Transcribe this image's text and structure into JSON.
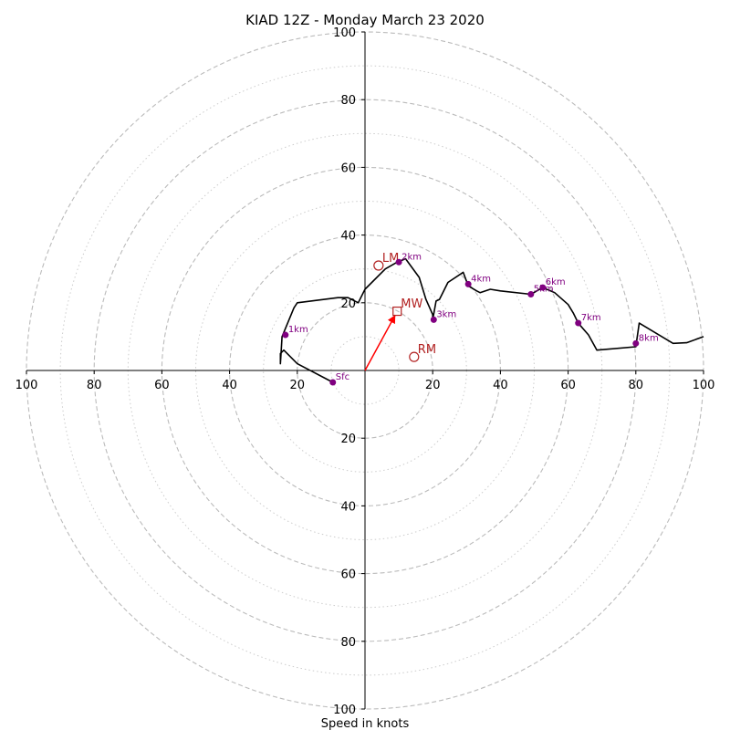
{
  "chart_data": {
    "type": "hodograph",
    "title": "KIAD 12Z - Monday March 23 2020",
    "xlabel": "Speed in knots",
    "range_max": 100,
    "rings_major": [
      20,
      40,
      60,
      80,
      100
    ],
    "rings_minor": [
      10,
      30,
      50,
      70,
      90
    ],
    "x_tick_labels": [
      "100",
      "80",
      "60",
      "40",
      "20",
      "20",
      "40",
      "60",
      "80",
      "100"
    ],
    "y_tick_labels": [
      "100",
      "80",
      "60",
      "40",
      "20",
      "20",
      "40",
      "60",
      "80",
      "100"
    ],
    "x_tick_values": [
      -100,
      -80,
      -60,
      -40,
      -20,
      20,
      40,
      60,
      80,
      100
    ],
    "y_tick_values": [
      100,
      80,
      60,
      40,
      20,
      -20,
      -40,
      -60,
      -80,
      -100
    ],
    "trace": {
      "u": [
        -9.5,
        -20,
        -24,
        -25,
        -25,
        -24.5,
        -21,
        -20,
        -8,
        -5,
        -2,
        0,
        6,
        9.5,
        12,
        16,
        18,
        20,
        20,
        21,
        22,
        24.5,
        29,
        30.5,
        33,
        34,
        37,
        40,
        49,
        52.5,
        56,
        60,
        61.5,
        63,
        66,
        68.5,
        80,
        81,
        91,
        95,
        100
      ],
      "v": [
        -3.5,
        2,
        6,
        5,
        2,
        10,
        18.5,
        20,
        21.5,
        21.5,
        20,
        24,
        30,
        32,
        33,
        27.5,
        21,
        16.5,
        15,
        20.5,
        21,
        26,
        29,
        25,
        23.5,
        23,
        24,
        23.5,
        22.5,
        24.5,
        23,
        19.5,
        17,
        14,
        10.5,
        6,
        7,
        14,
        8,
        8.2,
        10
      ],
      "color": "#000000"
    },
    "height_markers": [
      {
        "label": "Sfc",
        "u": -9.5,
        "v": -3.5
      },
      {
        "label": "1km",
        "u": -23.5,
        "v": 10.5
      },
      {
        "label": "2km",
        "u": 10,
        "v": 32
      },
      {
        "label": "3km",
        "u": 20.3,
        "v": 15
      },
      {
        "label": "4km",
        "u": 30.5,
        "v": 25.5
      },
      {
        "label": "5km",
        "u": 49,
        "v": 22.5
      },
      {
        "label": "6km",
        "u": 52.5,
        "v": 24.5
      },
      {
        "label": "7km",
        "u": 63,
        "v": 14
      },
      {
        "label": "8km",
        "u": 80,
        "v": 8
      }
    ],
    "marker_color": "#800080",
    "storm_motions": [
      {
        "label": "LM",
        "u": 4,
        "v": 31,
        "symbol": "circle"
      },
      {
        "label": "MW",
        "u": 9.5,
        "v": 17.5,
        "symbol": "square"
      },
      {
        "label": "RM",
        "u": 14.5,
        "v": 4,
        "symbol": "circle"
      }
    ],
    "mean_wind_vector": {
      "u": 9.5,
      "v": 17.5,
      "color": "#ff0000"
    },
    "motion_color": "#b22222",
    "grid_color": "#bbbbbb"
  }
}
